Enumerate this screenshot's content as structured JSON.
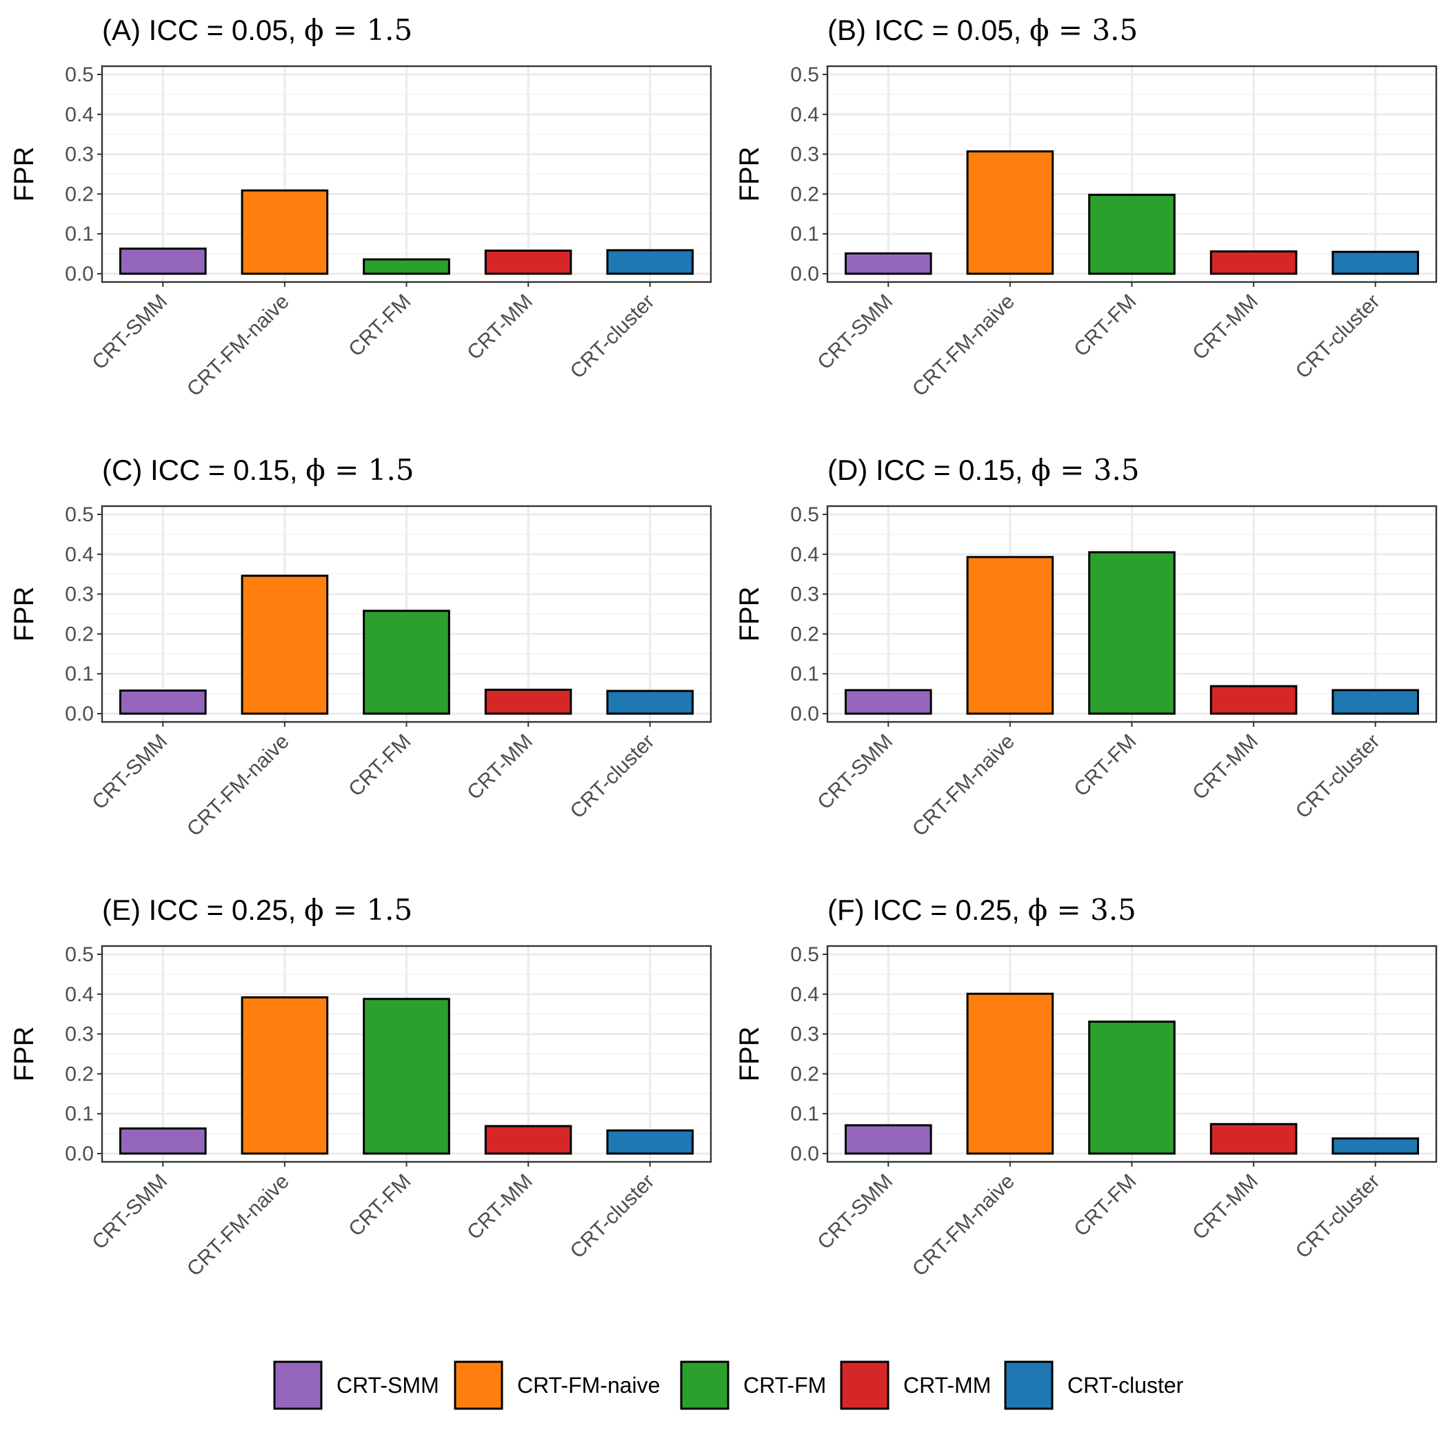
{
  "chart_data": {
    "type": "bar",
    "layout": "3x2 facet grid",
    "ylabel": "FPR",
    "xlabel": "",
    "ylim": [
      0,
      0.5
    ],
    "yticks": [
      "0.0",
      "0.1",
      "0.2",
      "0.3",
      "0.4",
      "0.5"
    ],
    "categories": [
      "CRT-SMM",
      "CRT-FM-naive",
      "CRT-FM",
      "CRT-MM",
      "CRT-cluster"
    ],
    "colors": {
      "CRT-SMM": "#9467bd",
      "CRT-FM-naive": "#ff7f0e",
      "CRT-FM": "#2ca02c",
      "CRT-MM": "#d62728",
      "CRT-cluster": "#1f77b4"
    },
    "panels": [
      {
        "label": "(A) ICC = 0.05,",
        "phi": "ϕ = 1.5",
        "values": [
          0.063,
          0.209,
          0.036,
          0.058,
          0.059
        ]
      },
      {
        "label": "(B) ICC = 0.05,",
        "phi": "ϕ = 3.5",
        "values": [
          0.051,
          0.307,
          0.198,
          0.056,
          0.055
        ]
      },
      {
        "label": "(C) ICC = 0.15,",
        "phi": "ϕ = 1.5",
        "values": [
          0.058,
          0.346,
          0.258,
          0.06,
          0.057
        ]
      },
      {
        "label": "(D) ICC = 0.15,",
        "phi": "ϕ = 3.5",
        "values": [
          0.059,
          0.393,
          0.405,
          0.069,
          0.059
        ]
      },
      {
        "label": "(E) ICC = 0.25,",
        "phi": "ϕ = 1.5",
        "values": [
          0.063,
          0.392,
          0.388,
          0.069,
          0.058
        ]
      },
      {
        "label": "(F) ICC = 0.25,",
        "phi": "ϕ = 3.5",
        "values": [
          0.071,
          0.401,
          0.331,
          0.074,
          0.038
        ]
      }
    ],
    "legend": {
      "position": "bottom",
      "entries": [
        "CRT-SMM",
        "CRT-FM-naive",
        "CRT-FM",
        "CRT-MM",
        "CRT-cluster"
      ]
    }
  }
}
